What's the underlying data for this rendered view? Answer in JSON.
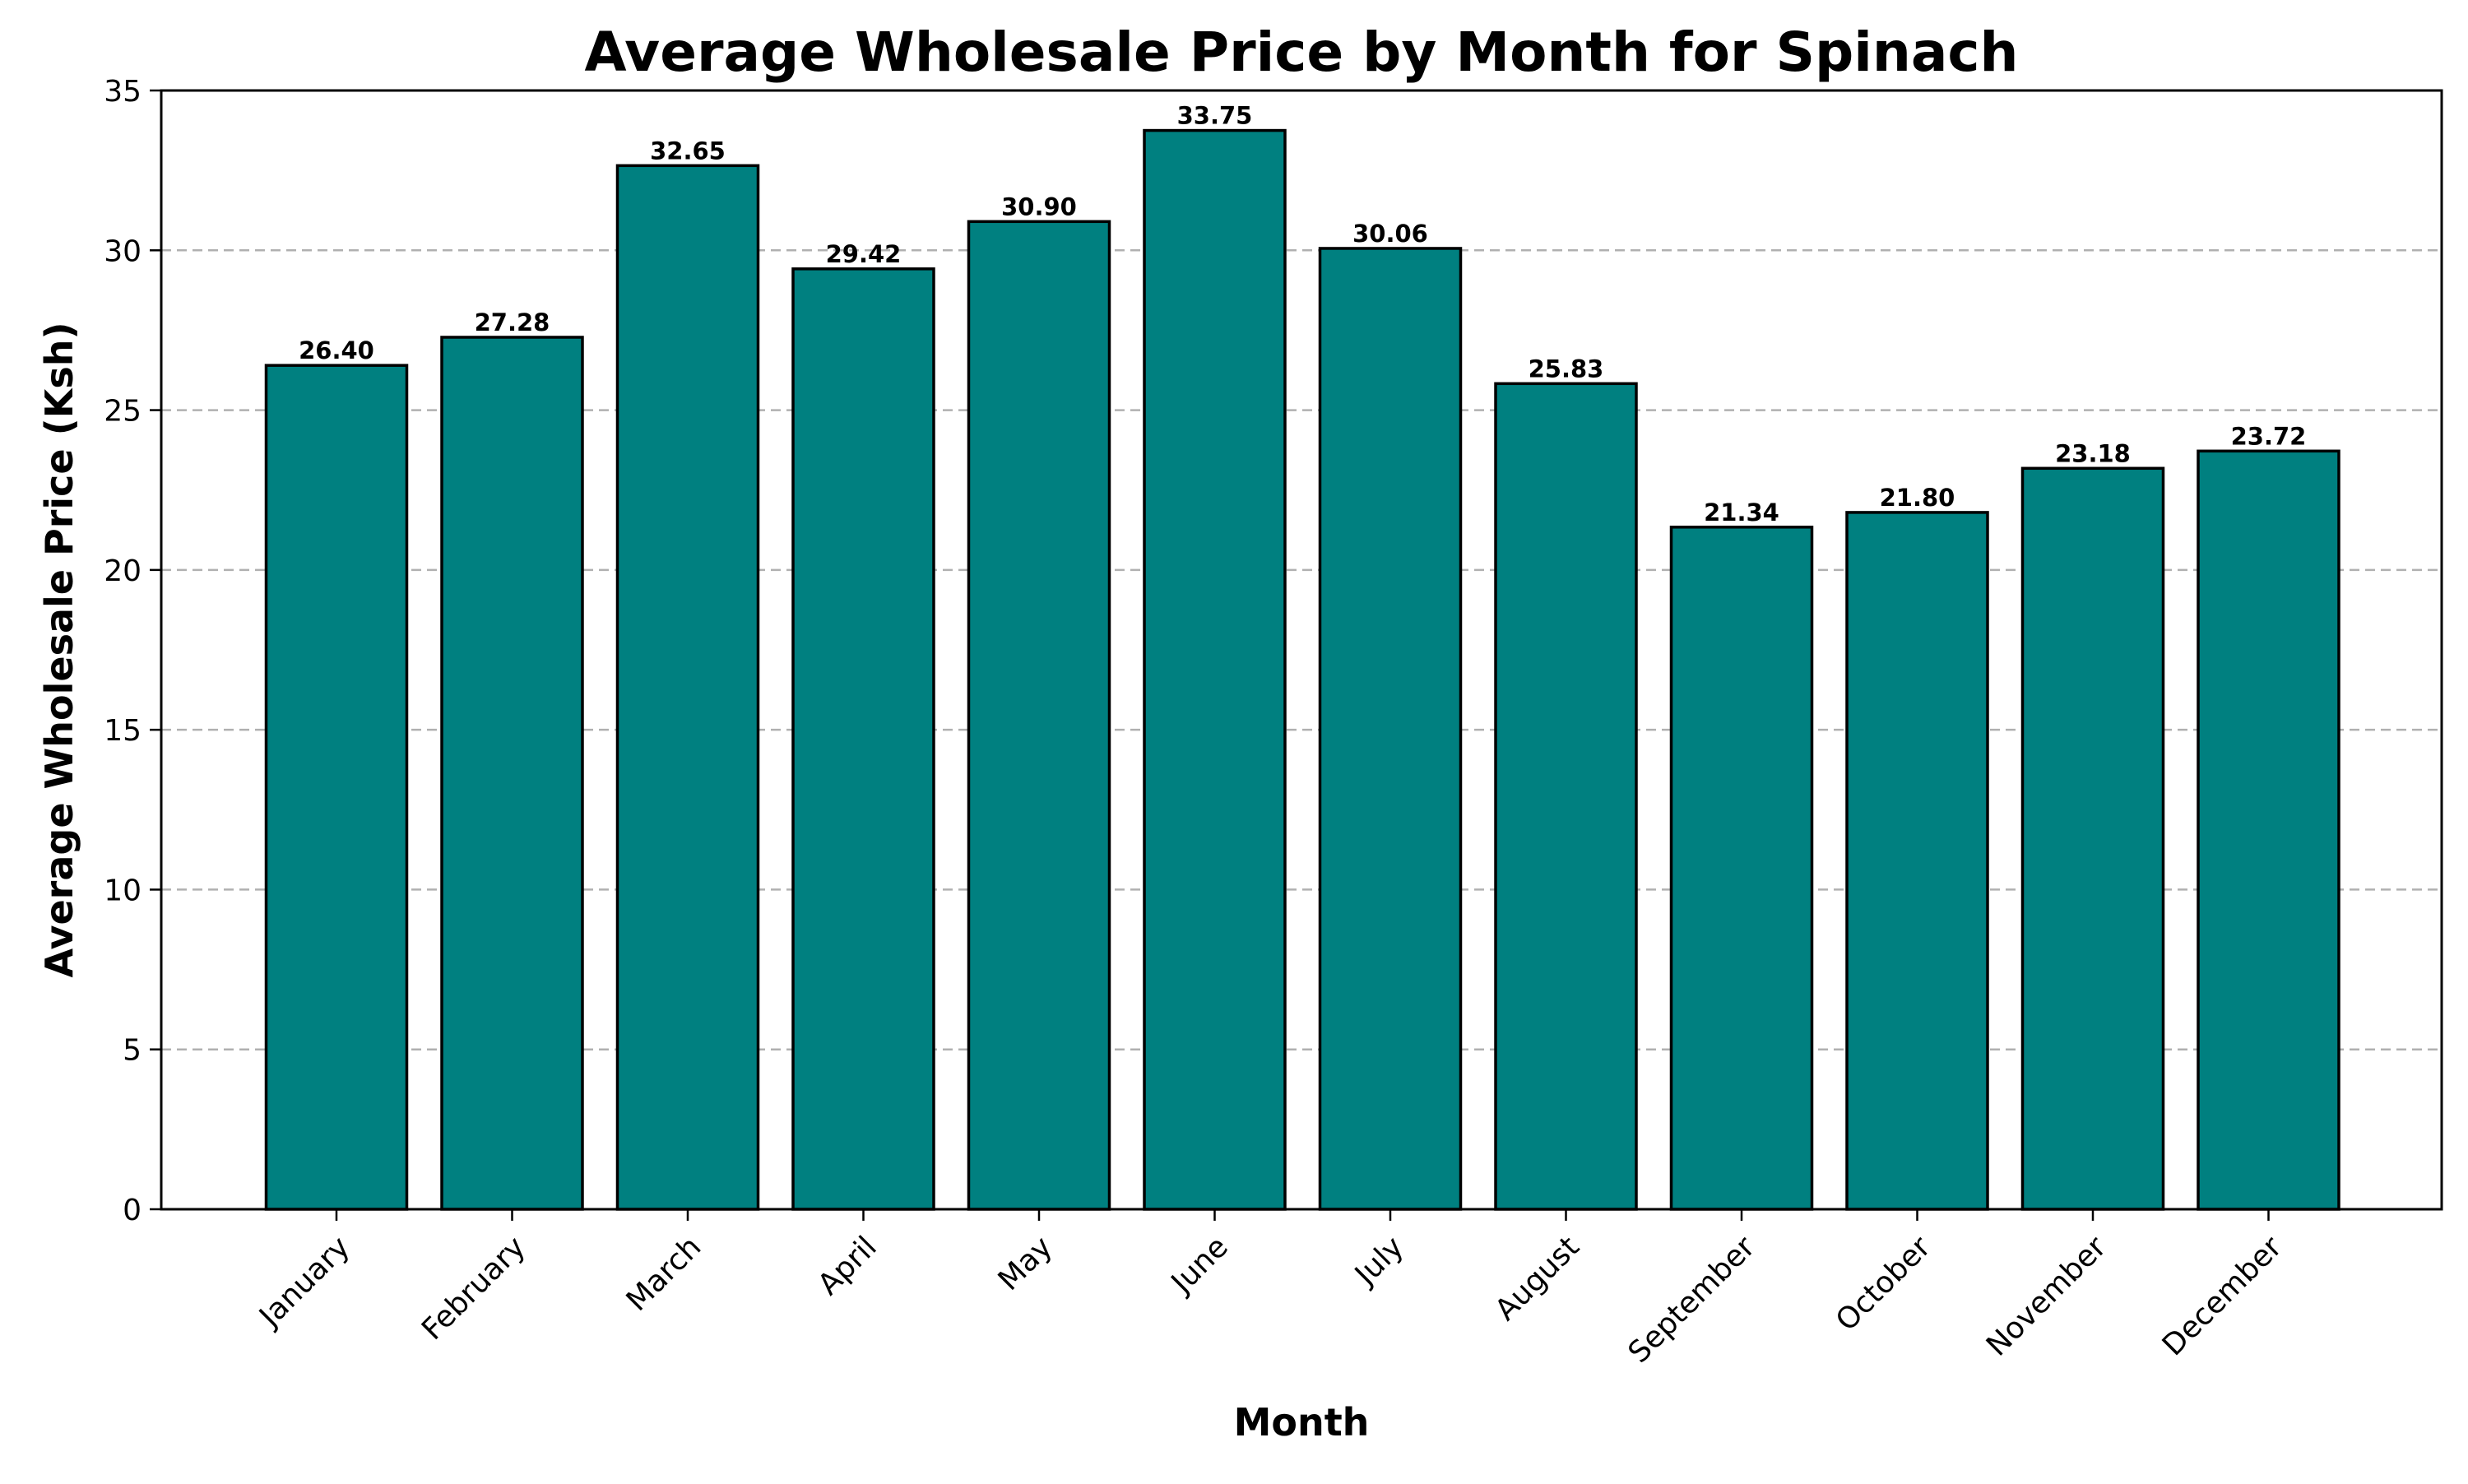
{
  "chart_data": {
    "type": "bar",
    "title": "Average Wholesale Price by Month for Spinach",
    "xlabel": "Month",
    "ylabel": "Average Wholesale Price (Ksh)",
    "categories": [
      "January",
      "February",
      "March",
      "April",
      "May",
      "June",
      "July",
      "August",
      "September",
      "October",
      "November",
      "December"
    ],
    "values": [
      26.4,
      27.28,
      32.65,
      29.42,
      30.9,
      33.75,
      30.06,
      25.83,
      21.34,
      21.8,
      23.18,
      23.72
    ],
    "value_labels": [
      "26.40",
      "27.28",
      "32.65",
      "29.42",
      "30.90",
      "33.75",
      "30.06",
      "25.83",
      "21.34",
      "21.80",
      "23.18",
      "23.72"
    ],
    "ylim": [
      0,
      35
    ],
    "yticks": [
      "0",
      "5",
      "10",
      "15",
      "20",
      "25",
      "30",
      "35"
    ],
    "grid": "y-dashed",
    "bar_color": "#008080",
    "bar_edge_color": "#000000"
  }
}
